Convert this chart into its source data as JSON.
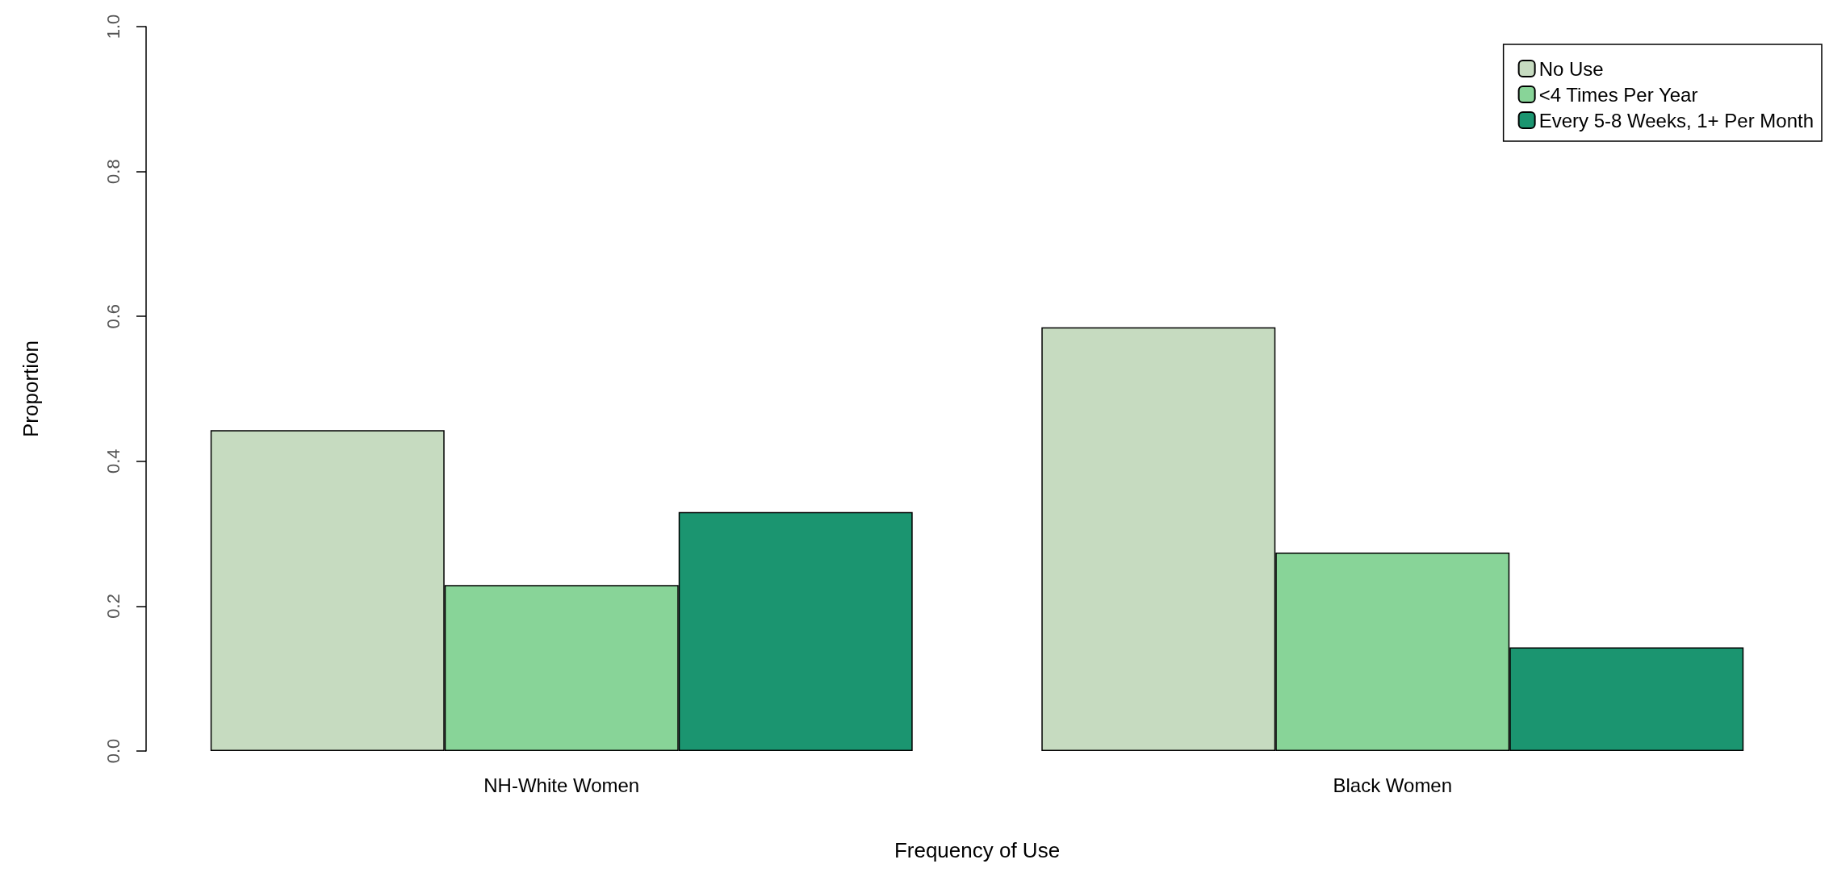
{
  "chart_data": {
    "type": "bar",
    "xlabel": "Frequency of Use",
    "ylabel": "Proportion",
    "categories": [
      "NH-White Women",
      "Black Women"
    ],
    "series": [
      {
        "name": "No Use",
        "color": "#c6dbc0",
        "values": [
          0.443,
          0.585
        ]
      },
      {
        "name": "<4 Times Per Year",
        "color": "#88d498",
        "values": [
          0.229,
          0.274
        ]
      },
      {
        "name": "Every 5-8 Weeks, 1+ Per Month",
        "color": "#1b9570",
        "values": [
          0.33,
          0.143
        ]
      }
    ],
    "ylim": [
      0,
      1
    ],
    "yticks": [
      {
        "value": 0,
        "label": "0.0"
      },
      0.2,
      0.4,
      0.6,
      0.8,
      {
        "value": 1,
        "label": "1.0"
      }
    ],
    "legend": "top right"
  }
}
